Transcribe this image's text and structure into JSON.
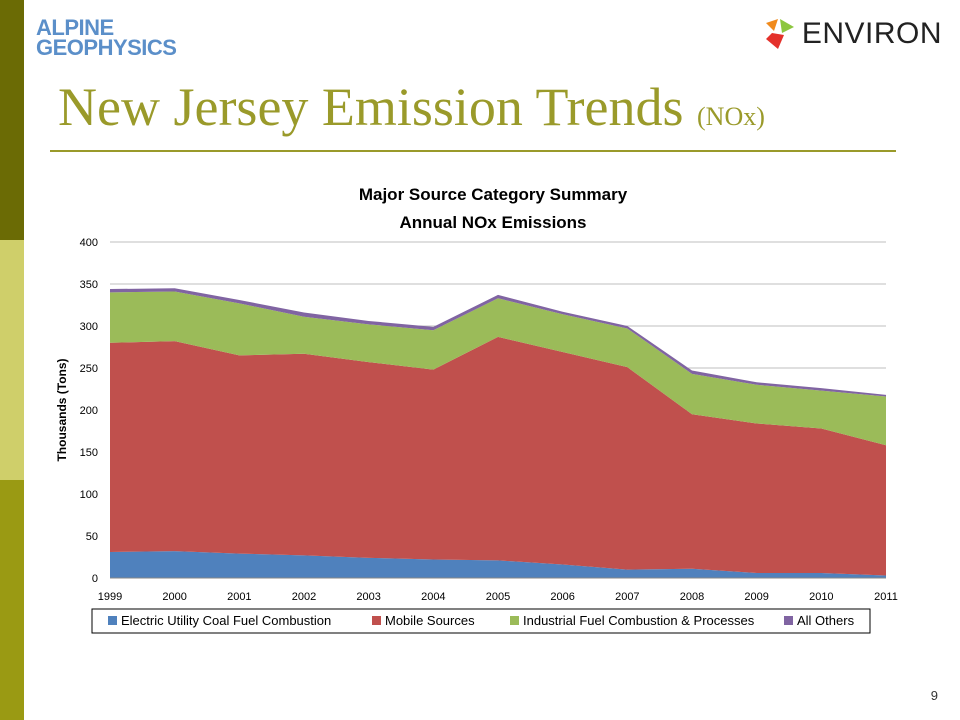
{
  "slide": {
    "logo_left": {
      "line1": "ALPINE",
      "line2": "GEOPHYSICS"
    },
    "logo_right": "ENVIRON",
    "title_main": "New Jersey Emission Trends ",
    "title_sub": "(NOx)",
    "page_number": "9",
    "colors": {
      "title": "#9a9a2a",
      "sidebar_dark": "#6b6b05",
      "sidebar_light": "#cfcf6a",
      "sidebar_mid": "#9a9a13"
    }
  },
  "chart_data": {
    "type": "area",
    "stacked": true,
    "title": "Major Source Category Summary",
    "subtitle": "Annual NOx Emissions",
    "ylabel": "Thousands  (Tons)",
    "xlabel": "",
    "ylim": [
      0,
      400
    ],
    "yticks": [
      "0",
      "50",
      "100",
      "150",
      "200",
      "250",
      "300",
      "350",
      "400"
    ],
    "grid": true,
    "legend_position": "bottom",
    "categories": [
      "1999",
      "2000",
      "2001",
      "2002",
      "2003",
      "2004",
      "2005",
      "2006",
      "2007",
      "2008",
      "2009",
      "2010",
      "2011"
    ],
    "series": [
      {
        "name": "Electric Utility Coal Fuel Combustion",
        "color": "#4f81bd",
        "values": [
          31,
          32,
          29,
          27,
          24,
          22,
          21,
          16,
          10,
          11,
          6,
          6,
          3
        ]
      },
      {
        "name": "Mobile Sources",
        "color": "#c0504d",
        "values": [
          249,
          250,
          236,
          240,
          233,
          226,
          266,
          253,
          241,
          184,
          178,
          172,
          155
        ]
      },
      {
        "name": "Industrial Fuel Combustion & Processes",
        "color": "#9bbb59",
        "values": [
          60,
          59,
          62,
          44,
          45,
          47,
          46,
          45,
          46,
          48,
          46,
          45,
          58
        ]
      },
      {
        "name": "All Others",
        "color": "#8064a2",
        "values": [
          4,
          4,
          4,
          5,
          4,
          4,
          4,
          3,
          3,
          4,
          3,
          3,
          2
        ]
      }
    ]
  }
}
